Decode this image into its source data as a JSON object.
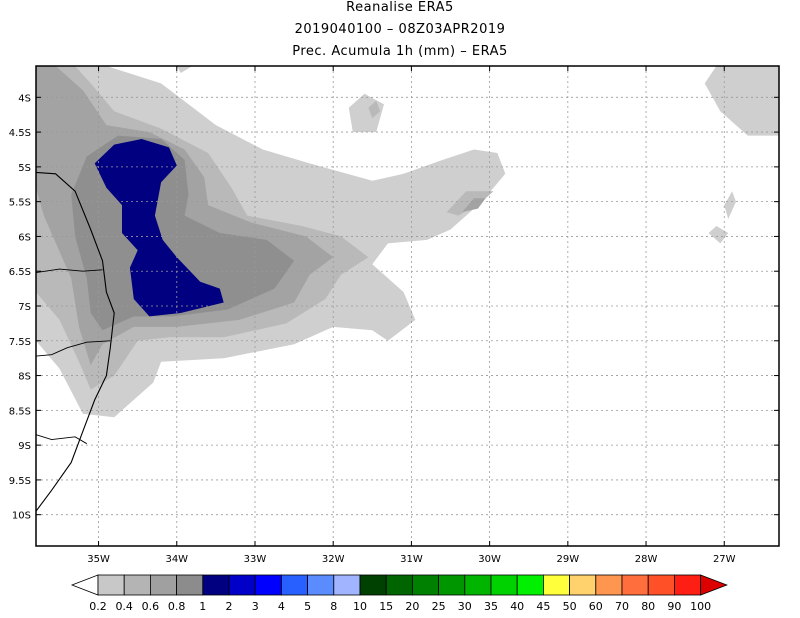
{
  "titles": {
    "line1": "Reanalise ERA5",
    "line2": "2019040100 – 08Z03APR2019",
    "line3": "Prec. Acumula 1h (mm) – ERA5"
  },
  "chart_data": {
    "type": "filled-contour-map",
    "title": "Prec. Acumula 1h (mm) – ERA5",
    "subtitle": "2019040100 – 08Z03APR2019",
    "source": "Reanalise ERA5",
    "variable": "1h accumulated precipitation (mm)",
    "xlim": [
      -35.8,
      -26.3
    ],
    "ylim": [
      -10.45,
      -3.55
    ],
    "x_ticks": [
      -35,
      -34,
      -33,
      -32,
      -31,
      -30,
      -29,
      -28,
      -27
    ],
    "x_tick_labels": [
      "35W",
      "34W",
      "33W",
      "32W",
      "31W",
      "30W",
      "29W",
      "28W",
      "27W"
    ],
    "y_ticks": [
      -4,
      -4.5,
      -5,
      -5.5,
      -6,
      -6.5,
      -7,
      -7.5,
      -8,
      -8.5,
      -9,
      -9.5,
      -10
    ],
    "y_tick_labels": [
      "4S",
      "4.5S",
      "5S",
      "5.5S",
      "6S",
      "6.5S",
      "7S",
      "7.5S",
      "8S",
      "8.5S",
      "9S",
      "9.5S",
      "10S"
    ],
    "grid": true,
    "colorbar": {
      "labels": [
        "0.2",
        "0.4",
        "0.6",
        "0.8",
        "1",
        "2",
        "3",
        "4",
        "5",
        "8",
        "10",
        "15",
        "20",
        "25",
        "30",
        "35",
        "40",
        "45",
        "50",
        "60",
        "70",
        "80",
        "90",
        "100"
      ],
      "colors": [
        "#c8c8c8",
        "#b4b4b4",
        "#a0a0a0",
        "#8c8c8c",
        "#000080",
        "#0000c8",
        "#0000ff",
        "#2860ff",
        "#5a8cff",
        "#a0b4ff",
        "#004000",
        "#006400",
        "#008000",
        "#009600",
        "#00b400",
        "#00d200",
        "#00f000",
        "#ffff3c",
        "#ffd26e",
        "#ff9650",
        "#ff6e3c",
        "#ff5028",
        "#ff1e14",
        "#dc0000"
      ]
    },
    "contours": [
      {
        "level": 0.2,
        "color": "#cfcfcf",
        "paths": [
          [
            [
              -35.8,
              -3.55
            ],
            [
              -34.9,
              -3.55
            ],
            [
              -34.2,
              -3.8
            ],
            [
              -33.5,
              -4.4
            ],
            [
              -32.9,
              -4.75
            ],
            [
              -32.3,
              -4.95
            ],
            [
              -31.5,
              -5.2
            ],
            [
              -31.1,
              -5.1
            ],
            [
              -30.6,
              -4.9
            ],
            [
              -30.2,
              -4.75
            ],
            [
              -29.9,
              -4.8
            ],
            [
              -29.8,
              -5.1
            ],
            [
              -30.1,
              -5.5
            ],
            [
              -30.5,
              -5.9
            ],
            [
              -30.8,
              -6.05
            ],
            [
              -31.3,
              -6.1
            ],
            [
              -31.5,
              -6.4
            ],
            [
              -31.1,
              -6.8
            ],
            [
              -30.95,
              -7.2
            ],
            [
              -31.3,
              -7.5
            ],
            [
              -31.5,
              -7.35
            ],
            [
              -32.0,
              -7.3
            ],
            [
              -32.5,
              -7.55
            ],
            [
              -33.4,
              -7.75
            ],
            [
              -34.2,
              -7.8
            ],
            [
              -34.3,
              -8.1
            ],
            [
              -34.8,
              -8.6
            ],
            [
              -35.2,
              -8.55
            ],
            [
              -35.5,
              -7.9
            ],
            [
              -35.8,
              -7.5
            ]
          ],
          [
            [
              -34.0,
              -3.55
            ],
            [
              -33.8,
              -3.55
            ],
            [
              -33.95,
              -3.65
            ]
          ],
          [
            [
              -27.1,
              -3.55
            ],
            [
              -26.3,
              -3.55
            ],
            [
              -26.3,
              -4.55
            ],
            [
              -26.7,
              -4.55
            ],
            [
              -27.05,
              -4.2
            ],
            [
              -27.25,
              -3.8
            ]
          ],
          [
            [
              -31.8,
              -4.15
            ],
            [
              -31.6,
              -3.95
            ],
            [
              -31.35,
              -4.1
            ],
            [
              -31.45,
              -4.5
            ],
            [
              -31.75,
              -4.5
            ]
          ],
          [
            [
              -27.0,
              -5.55
            ],
            [
              -26.9,
              -5.35
            ],
            [
              -26.85,
              -5.5
            ],
            [
              -26.95,
              -5.75
            ]
          ],
          [
            [
              -27.2,
              -5.95
            ],
            [
              -27.1,
              -5.85
            ],
            [
              -26.95,
              -5.95
            ],
            [
              -27.05,
              -6.1
            ]
          ]
        ]
      },
      {
        "level": 0.4,
        "color": "#b9b9b9",
        "paths": [
          [
            [
              -35.8,
              -3.55
            ],
            [
              -35.3,
              -3.55
            ],
            [
              -35.1,
              -3.8
            ],
            [
              -34.8,
              -4.2
            ],
            [
              -34.2,
              -4.45
            ],
            [
              -33.6,
              -4.8
            ],
            [
              -33.3,
              -5.3
            ],
            [
              -33.1,
              -5.7
            ],
            [
              -32.4,
              -5.85
            ],
            [
              -31.9,
              -6.0
            ],
            [
              -31.55,
              -6.3
            ],
            [
              -31.9,
              -6.55
            ],
            [
              -32.1,
              -6.9
            ],
            [
              -32.6,
              -7.25
            ],
            [
              -33.4,
              -7.45
            ],
            [
              -34.1,
              -7.45
            ],
            [
              -34.5,
              -7.5
            ],
            [
              -34.8,
              -8.0
            ],
            [
              -35.1,
              -8.2
            ],
            [
              -35.25,
              -7.8
            ],
            [
              -35.5,
              -7.2
            ],
            [
              -35.8,
              -6.8
            ]
          ],
          [
            [
              -30.55,
              -5.65
            ],
            [
              -30.3,
              -5.35
            ],
            [
              -29.95,
              -5.35
            ],
            [
              -30.1,
              -5.5
            ],
            [
              -30.4,
              -5.7
            ]
          ],
          [
            [
              -31.55,
              -4.15
            ],
            [
              -31.45,
              -4.05
            ],
            [
              -31.4,
              -4.2
            ],
            [
              -31.5,
              -4.3
            ]
          ]
        ]
      },
      {
        "level": 0.6,
        "color": "#a3a3a3",
        "paths": [
          [
            [
              -35.55,
              -3.55
            ],
            [
              -35.2,
              -3.9
            ],
            [
              -34.9,
              -4.4
            ],
            [
              -34.35,
              -4.5
            ],
            [
              -33.9,
              -4.75
            ],
            [
              -33.65,
              -5.15
            ],
            [
              -33.6,
              -5.55
            ],
            [
              -33.05,
              -5.8
            ],
            [
              -32.35,
              -6.0
            ],
            [
              -32.0,
              -6.3
            ],
            [
              -32.3,
              -6.55
            ],
            [
              -32.5,
              -6.95
            ],
            [
              -33.2,
              -7.2
            ],
            [
              -34.0,
              -7.3
            ],
            [
              -34.55,
              -7.3
            ],
            [
              -34.95,
              -7.55
            ],
            [
              -35.1,
              -7.85
            ],
            [
              -35.25,
              -7.3
            ],
            [
              -35.35,
              -6.6
            ],
            [
              -35.7,
              -5.7
            ],
            [
              -35.8,
              -5.3
            ],
            [
              -35.8,
              -3.55
            ]
          ],
          [
            [
              -30.35,
              -5.65
            ],
            [
              -30.2,
              -5.45
            ],
            [
              -30.05,
              -5.45
            ],
            [
              -30.15,
              -5.6
            ]
          ]
        ]
      },
      {
        "level": 0.8,
        "color": "#8f8f8f",
        "paths": [
          [
            [
              -35.15,
              -4.85
            ],
            [
              -34.75,
              -4.55
            ],
            [
              -34.2,
              -4.6
            ],
            [
              -33.9,
              -4.9
            ],
            [
              -33.85,
              -5.4
            ],
            [
              -33.9,
              -5.7
            ],
            [
              -33.45,
              -5.95
            ],
            [
              -32.85,
              -6.05
            ],
            [
              -32.5,
              -6.35
            ],
            [
              -32.75,
              -6.75
            ],
            [
              -33.35,
              -7.05
            ],
            [
              -34.05,
              -7.15
            ],
            [
              -34.55,
              -7.15
            ],
            [
              -34.95,
              -7.35
            ],
            [
              -35.1,
              -7.1
            ],
            [
              -35.15,
              -6.6
            ],
            [
              -35.3,
              -6.0
            ],
            [
              -35.35,
              -5.4
            ]
          ]
        ]
      },
      {
        "level": 1,
        "color": "#000080",
        "paths": [
          [
            [
              -35.05,
              -4.95
            ],
            [
              -34.8,
              -4.68
            ],
            [
              -34.45,
              -4.6
            ],
            [
              -34.1,
              -4.72
            ],
            [
              -34.0,
              -4.98
            ],
            [
              -34.2,
              -5.22
            ],
            [
              -34.28,
              -5.7
            ],
            [
              -34.18,
              -6.05
            ],
            [
              -34.0,
              -6.3
            ],
            [
              -33.7,
              -6.65
            ],
            [
              -33.45,
              -6.75
            ],
            [
              -33.4,
              -6.95
            ],
            [
              -33.95,
              -7.1
            ],
            [
              -34.35,
              -7.15
            ],
            [
              -34.55,
              -6.9
            ],
            [
              -34.6,
              -6.45
            ],
            [
              -34.5,
              -6.2
            ],
            [
              -34.7,
              -5.95
            ],
            [
              -34.7,
              -5.55
            ],
            [
              -34.9,
              -5.3
            ]
          ]
        ]
      }
    ],
    "coastline": [
      [
        -35.8,
        -5.08
      ],
      [
        -35.55,
        -5.1
      ],
      [
        -35.3,
        -5.35
      ],
      [
        -35.1,
        -5.9
      ],
      [
        -34.95,
        -6.35
      ],
      [
        -34.9,
        -6.8
      ],
      [
        -34.8,
        -7.1
      ],
      [
        -34.85,
        -7.6
      ],
      [
        -34.9,
        -8.0
      ],
      [
        -35.05,
        -8.35
      ],
      [
        -35.2,
        -8.8
      ],
      [
        -35.35,
        -9.25
      ],
      [
        -35.6,
        -9.65
      ],
      [
        -35.8,
        -9.95
      ]
    ],
    "borders": [
      [
        [
          -35.8,
          -6.52
        ],
        [
          -35.5,
          -6.47
        ],
        [
          -35.2,
          -6.5
        ],
        [
          -34.95,
          -6.48
        ]
      ],
      [
        [
          -35.8,
          -7.72
        ],
        [
          -35.6,
          -7.7
        ],
        [
          -35.4,
          -7.6
        ],
        [
          -35.15,
          -7.52
        ],
        [
          -34.85,
          -7.5
        ]
      ],
      [
        [
          -35.8,
          -8.85
        ],
        [
          -35.6,
          -8.92
        ],
        [
          -35.3,
          -8.88
        ],
        [
          -35.15,
          -8.98
        ]
      ]
    ]
  }
}
